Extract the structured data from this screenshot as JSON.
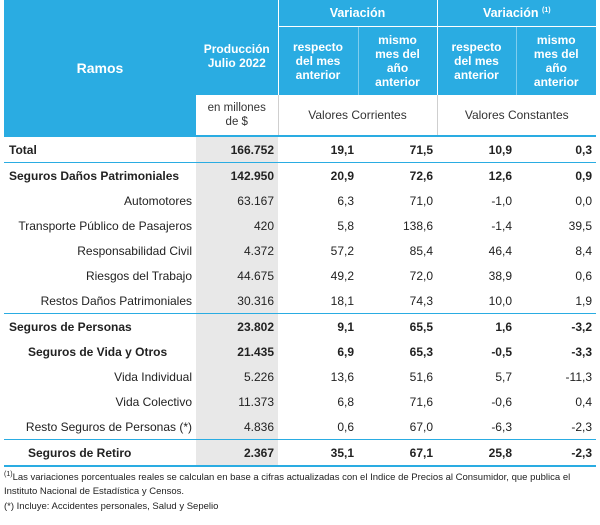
{
  "header": {
    "ramos": "Ramos",
    "produccion": "Producción Julio 2022",
    "variacion_1": "Variación",
    "variacion_2": "Variación",
    "variacion_2_note": "(1)",
    "respecto_mes_1": "respecto del mes anterior",
    "mismo_mes_1": "mismo mes del año anterior",
    "respecto_mes_2": "respecto del mes anterior",
    "mismo_mes_2": "mismo mes del año anterior",
    "unit": "en millones de $",
    "valores_corrientes": "Valores Corrientes",
    "valores_constantes": "Valores Constantes"
  },
  "rows": [
    {
      "label": "Total",
      "prod": "166.752",
      "vc_mes": "19,1",
      "vc_anio": "71,5",
      "k_mes": "10,9",
      "k_anio": "0,3"
    },
    {
      "label": "Seguros Daños Patrimoniales",
      "prod": "142.950",
      "vc_mes": "20,9",
      "vc_anio": "72,6",
      "k_mes": "12,6",
      "k_anio": "0,9"
    },
    {
      "label": "Automotores",
      "prod": "63.167",
      "vc_mes": "6,3",
      "vc_anio": "71,0",
      "k_mes": "-1,0",
      "k_anio": "0,0"
    },
    {
      "label": "Transporte Público de Pasajeros",
      "prod": "420",
      "vc_mes": "5,8",
      "vc_anio": "138,6",
      "k_mes": "-1,4",
      "k_anio": "39,5"
    },
    {
      "label": "Responsabilidad Civil",
      "prod": "4.372",
      "vc_mes": "57,2",
      "vc_anio": "85,4",
      "k_mes": "46,4",
      "k_anio": "8,4"
    },
    {
      "label": "Riesgos del Trabajo",
      "prod": "44.675",
      "vc_mes": "49,2",
      "vc_anio": "72,0",
      "k_mes": "38,9",
      "k_anio": "0,6"
    },
    {
      "label": "Restos Daños Patrimoniales",
      "prod": "30.316",
      "vc_mes": "18,1",
      "vc_anio": "74,3",
      "k_mes": "10,0",
      "k_anio": "1,9"
    },
    {
      "label": "Seguros de Personas",
      "prod": "23.802",
      "vc_mes": "9,1",
      "vc_anio": "65,5",
      "k_mes": "1,6",
      "k_anio": "-3,2"
    },
    {
      "label": "Seguros de Vida y Otros",
      "prod": "21.435",
      "vc_mes": "6,9",
      "vc_anio": "65,3",
      "k_mes": "-0,5",
      "k_anio": "-3,3"
    },
    {
      "label": "Vida Individual",
      "prod": "5.226",
      "vc_mes": "13,6",
      "vc_anio": "51,6",
      "k_mes": "5,7",
      "k_anio": "-11,3"
    },
    {
      "label": "Vida Colectivo",
      "prod": "11.373",
      "vc_mes": "6,8",
      "vc_anio": "71,6",
      "k_mes": "-0,6",
      "k_anio": "0,4"
    },
    {
      "label": "Resto Seguros de Personas (*)",
      "prod": "4.836",
      "vc_mes": "0,6",
      "vc_anio": "67,0",
      "k_mes": "-6,3",
      "k_anio": "-2,3"
    },
    {
      "label": "Seguros de Retiro",
      "prod": "2.367",
      "vc_mes": "35,1",
      "vc_anio": "67,1",
      "k_mes": "25,8",
      "k_anio": "-2,3"
    }
  ],
  "footnotes": {
    "note1_mark": "(1)",
    "note1": "Las variaciones porcentuales reales se calculan en base a cifras actualizadas con  el Indice de Precios al Consumidor, que publica el Instituto Nacional de Estadística y  Censos.",
    "note2": "(*) Incluye: Accidentes personales, Salud y Sepelio"
  },
  "colors": {
    "accent": "#2aace2",
    "shade": "#e8e8e8"
  }
}
